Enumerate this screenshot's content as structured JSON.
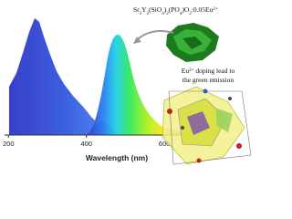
{
  "figure": {
    "formula": [
      "Sr",
      "3",
      "Y",
      "2",
      "(SiO",
      "4",
      ")",
      "2",
      "(PO",
      "4",
      ")O",
      "2",
      ":0.05Eu",
      "2+"
    ],
    "caption": {
      "line1": [
        "Eu",
        "2+",
        " doping lead to"
      ],
      "line2": "the green emission"
    },
    "axis": {
      "label": "Wavelength (nm)",
      "xlim": [
        190,
        740
      ],
      "ticks": [
        200,
        400,
        600
      ]
    }
  }
}
